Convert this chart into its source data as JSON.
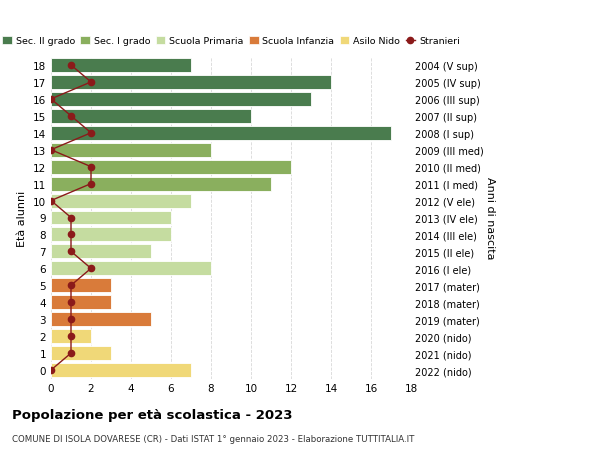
{
  "ages": [
    18,
    17,
    16,
    15,
    14,
    13,
    12,
    11,
    10,
    9,
    8,
    7,
    6,
    5,
    4,
    3,
    2,
    1,
    0
  ],
  "years": [
    "2004 (V sup)",
    "2005 (IV sup)",
    "2006 (III sup)",
    "2007 (II sup)",
    "2008 (I sup)",
    "2009 (III med)",
    "2010 (II med)",
    "2011 (I med)",
    "2012 (V ele)",
    "2013 (IV ele)",
    "2014 (III ele)",
    "2015 (II ele)",
    "2016 (I ele)",
    "2017 (mater)",
    "2018 (mater)",
    "2019 (mater)",
    "2020 (nido)",
    "2021 (nido)",
    "2022 (nido)"
  ],
  "bar_values": [
    7,
    14,
    13,
    10,
    17,
    8,
    12,
    11,
    7,
    6,
    6,
    5,
    8,
    3,
    3,
    5,
    2,
    3,
    7
  ],
  "bar_colors": [
    "#4a7c4e",
    "#4a7c4e",
    "#4a7c4e",
    "#4a7c4e",
    "#4a7c4e",
    "#8aaf5e",
    "#8aaf5e",
    "#8aaf5e",
    "#c5dca0",
    "#c5dca0",
    "#c5dca0",
    "#c5dca0",
    "#c5dca0",
    "#d97b3a",
    "#d97b3a",
    "#d97b3a",
    "#f0d878",
    "#f0d878",
    "#f0d878"
  ],
  "stranieri_values": [
    1,
    2,
    0,
    1,
    2,
    0,
    2,
    2,
    0,
    1,
    1,
    1,
    2,
    1,
    1,
    1,
    1,
    1,
    0
  ],
  "stranieri_color": "#8b1a1a",
  "legend_labels": [
    "Sec. II grado",
    "Sec. I grado",
    "Scuola Primaria",
    "Scuola Infanzia",
    "Asilo Nido",
    "Stranieri"
  ],
  "legend_colors": [
    "#4a7c4e",
    "#8aaf5e",
    "#c5dca0",
    "#d97b3a",
    "#f0d878",
    "#8b1a1a"
  ],
  "ylabel_left": "Età alunni",
  "ylabel_right": "Anni di nascita",
  "title": "Popolazione per età scolastica - 2023",
  "subtitle": "COMUNE DI ISOLA DOVARESE (CR) - Dati ISTAT 1° gennaio 2023 - Elaborazione TUTTITALIA.IT",
  "xlim": [
    0,
    18
  ],
  "background_color": "#ffffff",
  "grid_color": "#d8d8d8"
}
